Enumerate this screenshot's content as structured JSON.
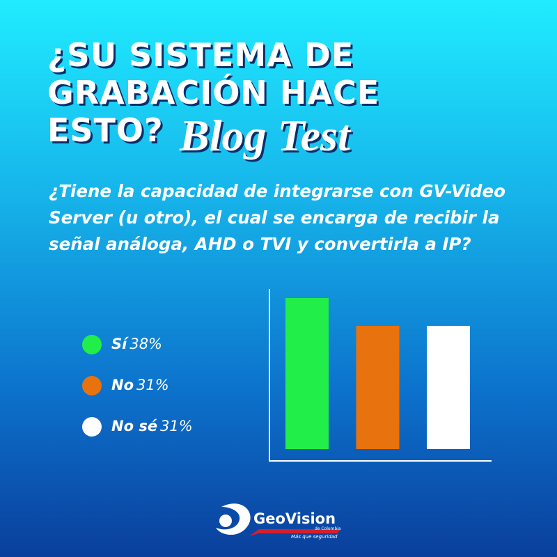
{
  "chart_data": {
    "type": "bar",
    "title_lines": [
      "¿SU SISTEMA DE",
      "GRABACIÓN HACE",
      "ESTO?"
    ],
    "subtitle": "Blog Test",
    "question": "¿Tiene la capacidad de integrarse con GV-Video Server (u otro), el cual se encarga de recibir la señal análoga, AHD o TVI y convertirla a IP?",
    "categories": [
      "Sí",
      "No",
      "No sé"
    ],
    "values": [
      38,
      31,
      31
    ],
    "value_labels": [
      "38%",
      "31%",
      "31%"
    ],
    "colors": [
      "#22ee4a",
      "#e8720e",
      "#ffffff"
    ]
  },
  "brand": {
    "name": "GeoVision",
    "region": "de Colombia",
    "tagline": "Más que seguridad"
  }
}
